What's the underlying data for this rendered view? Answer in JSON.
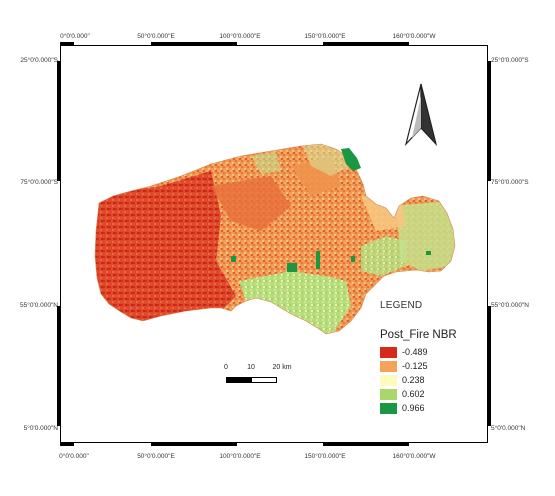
{
  "graticule": {
    "top_labels": [
      "0°0'0.000\"",
      "50°0'0.000\"E",
      "100°0'0.000\"E",
      "150°0'0.000\"E",
      "160°0'0.000\"W"
    ],
    "bottom_labels": [
      "0°0'0.000\"",
      "50°0'0.000\"E",
      "100°0'0.000\"E",
      "150°0'0.000\"E",
      "160°0'0.000\"W"
    ],
    "left_labels": [
      "25°0'0.000\"S",
      "75°0'0.000\"S",
      "55°0'0.000\"N",
      "5°0'0.000\"N"
    ],
    "right_labels": [
      "25°0'0.000\"S",
      "75°0'0.000\"S",
      "55°0'0.000\"N",
      "5°0'0.000\"N"
    ]
  },
  "north_arrow": {
    "icon": "north-arrow-icon"
  },
  "scale_bar": {
    "labels": [
      "0",
      "10",
      "20 km"
    ]
  },
  "legend": {
    "title": "LEGEND",
    "subtitle": "Post_Fire NBR",
    "items": [
      {
        "label": "-0.489",
        "color": "#d7291c"
      },
      {
        "label": "-0.125",
        "color": "#f5a25a"
      },
      {
        "label": "0.238",
        "color": "#fffbbe"
      },
      {
        "label": "0.602",
        "color": "#a9d76a"
      },
      {
        "label": "0.966",
        "color": "#1b9641"
      }
    ]
  },
  "colors": {
    "frame": "#000000",
    "background": "#ffffff"
  }
}
